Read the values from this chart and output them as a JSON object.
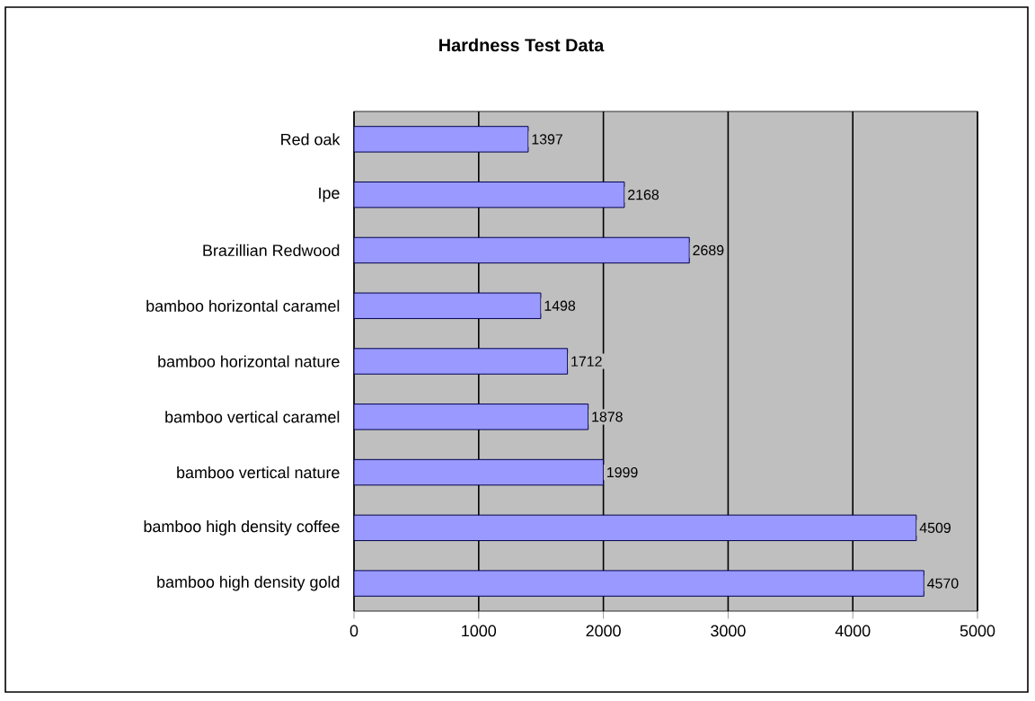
{
  "chart_data": {
    "type": "bar",
    "orientation": "horizontal",
    "title": "Hardness Test Data",
    "categories": [
      "Red oak",
      "Ipe",
      "Brazillian Redwood",
      "bamboo horizontal caramel",
      "bamboo horizontal nature",
      "bamboo vertical caramel",
      "bamboo vertical nature",
      "bamboo high density coffee",
      "bamboo high density gold"
    ],
    "values": [
      1397,
      2168,
      2689,
      1498,
      1712,
      1878,
      1999,
      4509,
      4570
    ],
    "color": "#9999ff",
    "xlim": [
      0,
      5000
    ],
    "xticks": [
      0,
      1000,
      2000,
      3000,
      4000,
      5000
    ],
    "grid": "x",
    "data_labels": true
  }
}
